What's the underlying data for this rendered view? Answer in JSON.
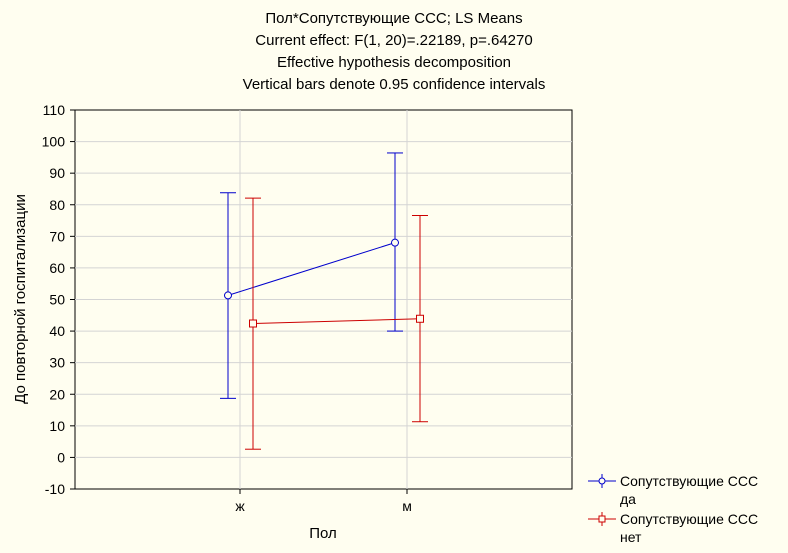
{
  "chart_data": {
    "type": "line",
    "title_lines": [
      "Пол*Сопутствующие ССС; LS Means",
      "Current effect: F(1, 20)=.22189, p=.64270",
      "Effective hypothesis decomposition",
      "Vertical bars denote 0.95 confidence intervals"
    ],
    "xlabel": "Пол",
    "ylabel": "До повторной госпитализации",
    "categories": [
      "ж",
      "м"
    ],
    "ylim": [
      -10,
      110
    ],
    "yticks": [
      -10,
      0,
      10,
      20,
      30,
      40,
      50,
      60,
      70,
      80,
      90,
      100,
      110
    ],
    "grid": true,
    "series": [
      {
        "name": "Сопутствующие ССС да",
        "legend_lines": [
          "Сопутствующие ССС",
          "да"
        ],
        "marker": "circle",
        "color": "#0000cc",
        "values": [
          51.3,
          68.0
        ],
        "ci_lower": [
          18.7,
          40.0
        ],
        "ci_upper": [
          83.8,
          96.4
        ]
      },
      {
        "name": "Сопутствующие ССС нет",
        "legend_lines": [
          "Сопутствующие ССС",
          "нет"
        ],
        "marker": "square",
        "color": "#cc0000",
        "values": [
          42.4,
          43.9
        ],
        "ci_lower": [
          2.6,
          11.3
        ],
        "ci_upper": [
          82.1,
          76.6
        ]
      }
    ]
  }
}
